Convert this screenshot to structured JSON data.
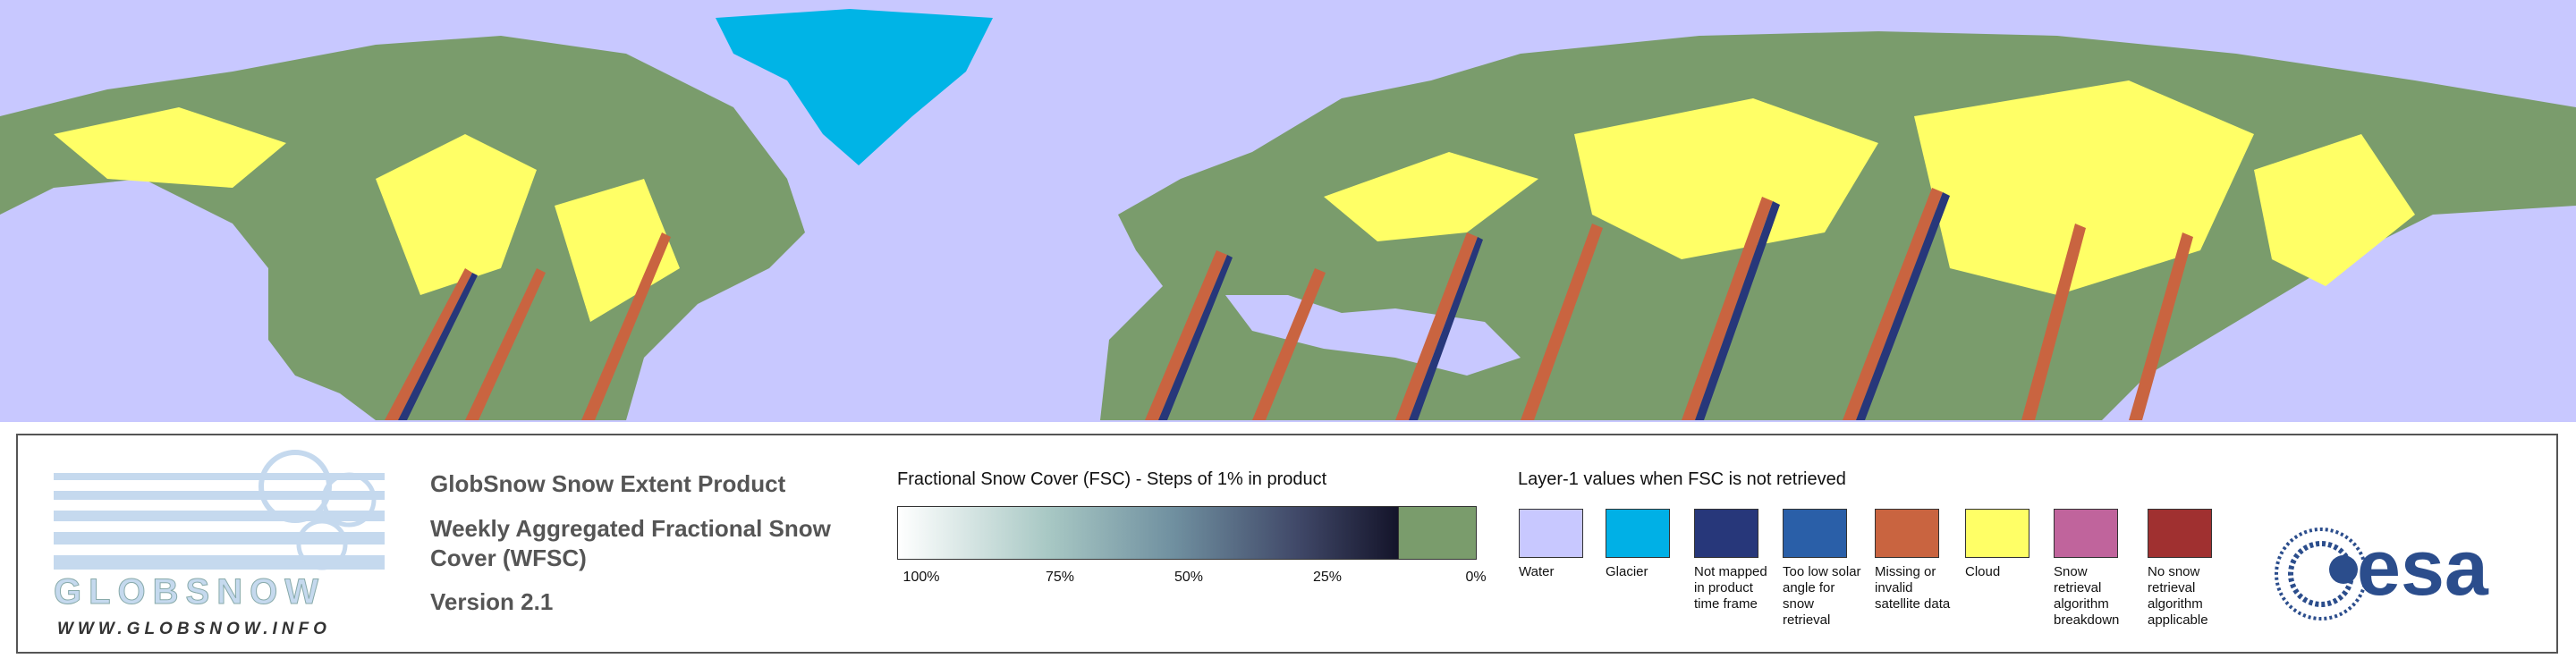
{
  "logo": {
    "name": "GLOBSNOW",
    "url": "WWW.GLOBSNOW.INFO"
  },
  "product": {
    "title": "GlobSnow Snow Extent Product",
    "subtitle": "Weekly Aggregated Fractional Snow Cover (WFSC)",
    "version": "Version 2.1"
  },
  "fsc_legend": {
    "title": "Fractional Snow Cover (FSC) - Steps of 1% in product",
    "ticks": [
      "100%",
      "75%",
      "50%",
      "25%",
      "0%"
    ]
  },
  "layer1_legend": {
    "title": "Layer-1 values when FSC is not retrieved",
    "items": [
      {
        "label": "Water",
        "color": "#c8c8ff"
      },
      {
        "label": "Glacier",
        "color": "#00b0e6"
      },
      {
        "label": "Not mapped in product time frame",
        "color": "#27377a"
      },
      {
        "label": "Too low solar angle for snow retrieval",
        "color": "#2a5fa8"
      },
      {
        "label": "Missing or invalid satellite data",
        "color": "#c96440"
      },
      {
        "label": "Cloud",
        "color": "#ffff66"
      },
      {
        "label": "Snow retrieval algorithm breakdown",
        "color": "#c0649c"
      },
      {
        "label": "No snow retrieval algorithm applicable",
        "color": "#a03030"
      }
    ]
  },
  "esa_logo": "esa"
}
